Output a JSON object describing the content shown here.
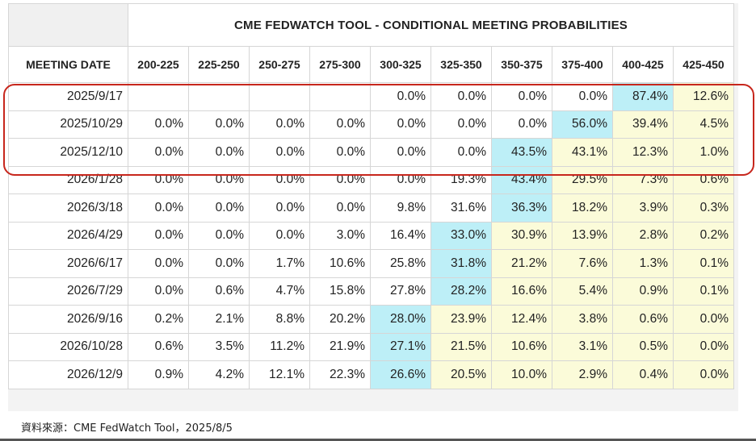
{
  "colors": {
    "highlight_blue": "#bdeff7",
    "highlight_yellow": "#fbfbd9",
    "callout_border": "#c7261c"
  },
  "chart_data": {
    "type": "table",
    "title": "CME FEDWATCH TOOL - CONDITIONAL MEETING PROBABILITIES",
    "row_header": "MEETING DATE",
    "columns": [
      "200-225",
      "225-250",
      "250-275",
      "275-300",
      "300-325",
      "325-350",
      "350-375",
      "375-400",
      "400-425",
      "425-450"
    ],
    "rows": [
      {
        "date": "2025/9/17",
        "values": [
          "",
          "",
          "",
          "",
          "0.0%",
          "0.0%",
          "0.0%",
          "0.0%",
          "87.4%",
          "12.6%"
        ],
        "style": [
          "",
          "",
          "",
          "",
          "",
          "",
          "",
          "",
          "b",
          "y"
        ]
      },
      {
        "date": "2025/10/29",
        "values": [
          "0.0%",
          "0.0%",
          "0.0%",
          "0.0%",
          "0.0%",
          "0.0%",
          "0.0%",
          "56.0%",
          "39.4%",
          "4.5%"
        ],
        "style": [
          "",
          "",
          "",
          "",
          "",
          "",
          "",
          "b",
          "y",
          "y"
        ]
      },
      {
        "date": "2025/12/10",
        "values": [
          "0.0%",
          "0.0%",
          "0.0%",
          "0.0%",
          "0.0%",
          "0.0%",
          "43.5%",
          "43.1%",
          "12.3%",
          "1.0%"
        ],
        "style": [
          "",
          "",
          "",
          "",
          "",
          "",
          "b",
          "y",
          "y",
          "y"
        ]
      },
      {
        "date": "2026/1/28",
        "values": [
          "0.0%",
          "0.0%",
          "0.0%",
          "0.0%",
          "0.0%",
          "19.3%",
          "43.4%",
          "29.5%",
          "7.3%",
          "0.6%"
        ],
        "style": [
          "",
          "",
          "",
          "",
          "",
          "",
          "b",
          "y",
          "y",
          "y"
        ]
      },
      {
        "date": "2026/3/18",
        "values": [
          "0.0%",
          "0.0%",
          "0.0%",
          "0.0%",
          "9.8%",
          "31.6%",
          "36.3%",
          "18.2%",
          "3.9%",
          "0.3%"
        ],
        "style": [
          "",
          "",
          "",
          "",
          "",
          "",
          "b",
          "y",
          "y",
          "y"
        ]
      },
      {
        "date": "2026/4/29",
        "values": [
          "0.0%",
          "0.0%",
          "0.0%",
          "3.0%",
          "16.4%",
          "33.0%",
          "30.9%",
          "13.9%",
          "2.8%",
          "0.2%"
        ],
        "style": [
          "",
          "",
          "",
          "",
          "",
          "b",
          "y",
          "y",
          "y",
          "y"
        ]
      },
      {
        "date": "2026/6/17",
        "values": [
          "0.0%",
          "0.0%",
          "1.7%",
          "10.6%",
          "25.8%",
          "31.8%",
          "21.2%",
          "7.6%",
          "1.3%",
          "0.1%"
        ],
        "style": [
          "",
          "",
          "",
          "",
          "",
          "b",
          "y",
          "y",
          "y",
          "y"
        ]
      },
      {
        "date": "2026/7/29",
        "values": [
          "0.0%",
          "0.6%",
          "4.7%",
          "15.8%",
          "27.8%",
          "28.2%",
          "16.6%",
          "5.4%",
          "0.9%",
          "0.1%"
        ],
        "style": [
          "",
          "",
          "",
          "",
          "",
          "b",
          "y",
          "y",
          "y",
          "y"
        ]
      },
      {
        "date": "2026/9/16",
        "values": [
          "0.2%",
          "2.1%",
          "8.8%",
          "20.2%",
          "28.0%",
          "23.9%",
          "12.4%",
          "3.8%",
          "0.6%",
          "0.0%"
        ],
        "style": [
          "",
          "",
          "",
          "",
          "b",
          "y",
          "y",
          "y",
          "y",
          "y"
        ]
      },
      {
        "date": "2026/10/28",
        "values": [
          "0.6%",
          "3.5%",
          "11.2%",
          "21.9%",
          "27.1%",
          "21.5%",
          "10.6%",
          "3.1%",
          "0.5%",
          "0.0%"
        ],
        "style": [
          "",
          "",
          "",
          "",
          "b",
          "y",
          "y",
          "y",
          "y",
          "y"
        ]
      },
      {
        "date": "2026/12/9",
        "values": [
          "0.9%",
          "4.2%",
          "12.1%",
          "22.3%",
          "26.6%",
          "20.5%",
          "10.0%",
          "2.9%",
          "0.4%",
          "0.0%"
        ],
        "style": [
          "",
          "",
          "",
          "",
          "b",
          "y",
          "y",
          "y",
          "y",
          "y"
        ]
      }
    ],
    "highlighted_rows": [
      "2025/9/17",
      "2025/10/29",
      "2025/12/10"
    ]
  },
  "source_note": "資料來源：CME FedWatch Tool，2025/8/5"
}
